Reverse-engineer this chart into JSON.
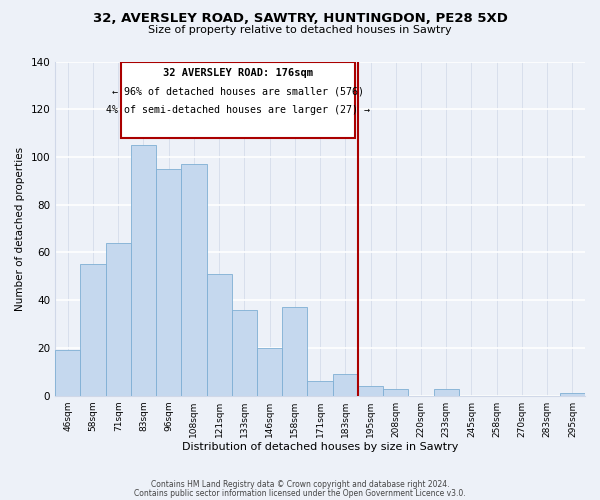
{
  "title_line1": "32, AVERSLEY ROAD, SAWTRY, HUNTINGDON, PE28 5XD",
  "title_line2": "Size of property relative to detached houses in Sawtry",
  "xlabel": "Distribution of detached houses by size in Sawtry",
  "ylabel": "Number of detached properties",
  "bar_labels": [
    "46sqm",
    "58sqm",
    "71sqm",
    "83sqm",
    "96sqm",
    "108sqm",
    "121sqm",
    "133sqm",
    "146sqm",
    "158sqm",
    "171sqm",
    "183sqm",
    "195sqm",
    "208sqm",
    "220sqm",
    "233sqm",
    "245sqm",
    "258sqm",
    "270sqm",
    "283sqm",
    "295sqm"
  ],
  "bar_values": [
    19,
    55,
    64,
    105,
    95,
    97,
    51,
    36,
    20,
    37,
    6,
    9,
    4,
    3,
    0,
    3,
    0,
    0,
    0,
    0,
    1
  ],
  "bar_color": "#c5d8ee",
  "bar_edge_color": "#7fafd4",
  "vline_x": 11.5,
  "vline_color": "#aa0000",
  "annotation_title": "32 AVERSLEY ROAD: 176sqm",
  "annotation_line1": "← 96% of detached houses are smaller (576)",
  "annotation_line2": "4% of semi-detached houses are larger (27) →",
  "annotation_box_color": "#ffffff",
  "annotation_box_edge": "#aa0000",
  "ylim": [
    0,
    140
  ],
  "yticks": [
    0,
    20,
    40,
    60,
    80,
    100,
    120,
    140
  ],
  "background_color": "#edf1f8",
  "grid_color": "#d0d8e8",
  "footer_line1": "Contains HM Land Registry data © Crown copyright and database right 2024.",
  "footer_line2": "Contains public sector information licensed under the Open Government Licence v3.0."
}
